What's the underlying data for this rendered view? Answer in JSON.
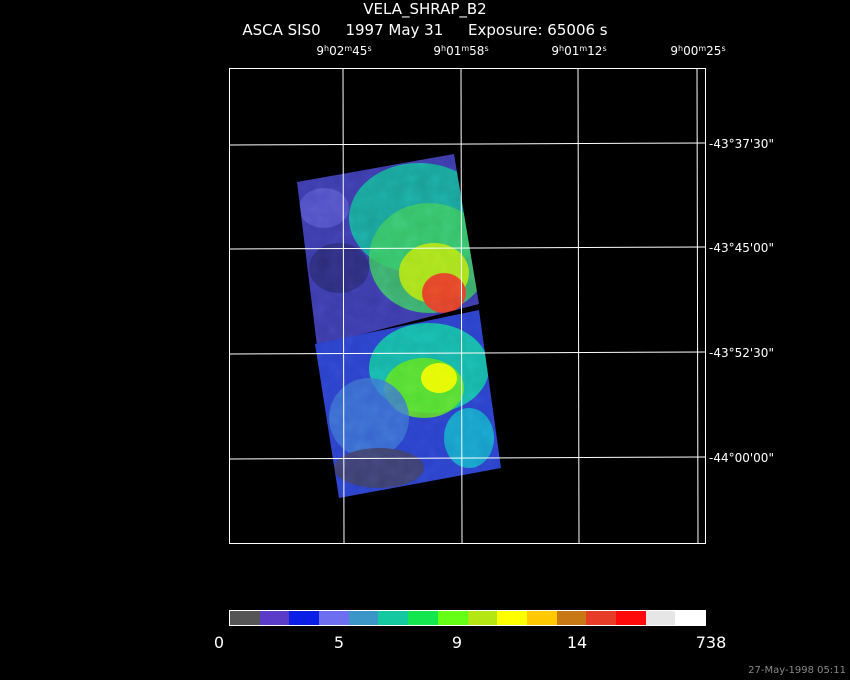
{
  "title": "VELA_SHRAP_B2",
  "subtitle": {
    "instrument": "ASCA SIS0",
    "date": "1997 May 31",
    "exposure": "Exposure: 65006 s"
  },
  "ra_labels": [
    {
      "h": "9",
      "m": "02",
      "s": "45"
    },
    {
      "h": "9",
      "m": "01",
      "s": "58"
    },
    {
      "h": "9",
      "m": "01",
      "s": "12"
    },
    {
      "h": "9",
      "m": "00",
      "s": "25"
    }
  ],
  "dec_labels": [
    "-43°37'30\"",
    "-43°45'00\"",
    "-43°52'30\"",
    "-44°00'00\""
  ],
  "colorbar": {
    "colors": [
      "#555555",
      "#5a3cc8",
      "#0a1ee6",
      "#6e6ef0",
      "#3c96c8",
      "#14c8a0",
      "#14e650",
      "#64ff14",
      "#b4e614",
      "#ffff00",
      "#ffc800",
      "#c87814",
      "#e63c28",
      "#ff0a0a",
      "#e6e6e6",
      "#ffffff"
    ],
    "labels": [
      "0",
      "5",
      "9",
      "14",
      "738"
    ]
  },
  "timestamp": "27-May-1998 05:11"
}
